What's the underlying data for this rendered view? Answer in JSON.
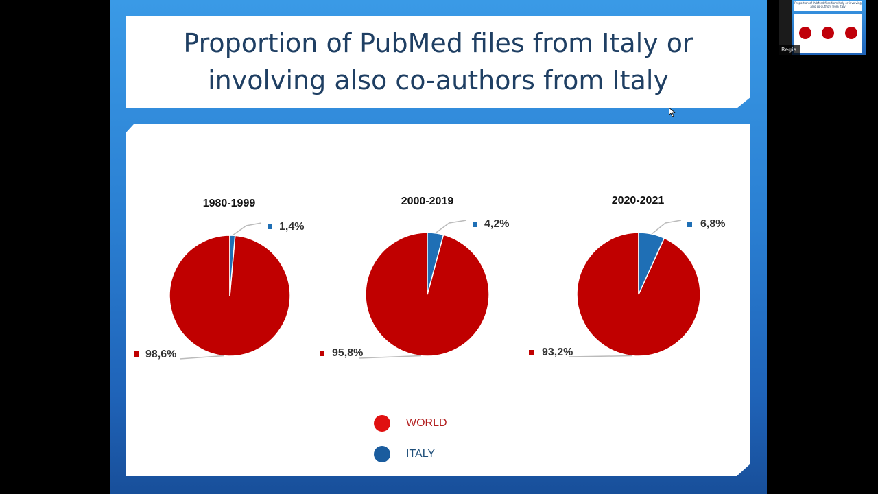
{
  "slide": {
    "title_line1": "Proportion of PubMed files from Italy or",
    "title_line2": "involving also co-authors from Italy"
  },
  "colors": {
    "world": "#c00000",
    "italy": "#1f6fb5"
  },
  "chart_data": [
    {
      "type": "pie",
      "title": "1980-1999",
      "series": [
        {
          "name": "WORLD",
          "value": 98.6,
          "label": "98,6%"
        },
        {
          "name": "ITALY",
          "value": 1.4,
          "label": "1,4%"
        }
      ]
    },
    {
      "type": "pie",
      "title": "2000-2019",
      "series": [
        {
          "name": "WORLD",
          "value": 95.8,
          "label": "95,8%"
        },
        {
          "name": "ITALY",
          "value": 4.2,
          "label": "4,2%"
        }
      ]
    },
    {
      "type": "pie",
      "title": "2020-2021",
      "series": [
        {
          "name": "WORLD",
          "value": 93.2,
          "label": "93,2%"
        },
        {
          "name": "ITALY",
          "value": 6.8,
          "label": "6,8%"
        }
      ]
    }
  ],
  "legend": [
    {
      "label": "WORLD",
      "color": "#e01010",
      "text_color": "#b21e1e"
    },
    {
      "label": "ITALY",
      "color": "#1a5c9e",
      "text_color": "#1f4f7a"
    }
  ],
  "thumbnail": {
    "participant_name": "Regia",
    "title_text": "Proportion of PubMed files from Italy or involving also co-authors from Italy"
  }
}
